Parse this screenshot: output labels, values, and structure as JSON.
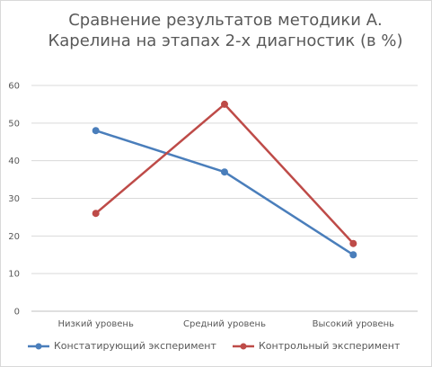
{
  "chart_data": {
    "type": "line",
    "title": "Сравнение результатов методики А. Карелина на этапах 2-х диагностик (в %)",
    "categories": [
      "Низкий уровень",
      "Средний уровень",
      "Высокий уровень"
    ],
    "ylim": [
      0,
      60
    ],
    "yticks": [
      "0",
      "10",
      "20",
      "30",
      "40",
      "50",
      "60"
    ],
    "grid": true,
    "legend_position": "bottom",
    "series": [
      {
        "name": "Констатирующий эксперимент",
        "values": [
          48,
          37,
          15
        ],
        "color": "#4a7ebb"
      },
      {
        "name": "Контрольный эксперимент",
        "values": [
          26,
          55,
          18
        ],
        "color": "#be4b48"
      }
    ]
  }
}
